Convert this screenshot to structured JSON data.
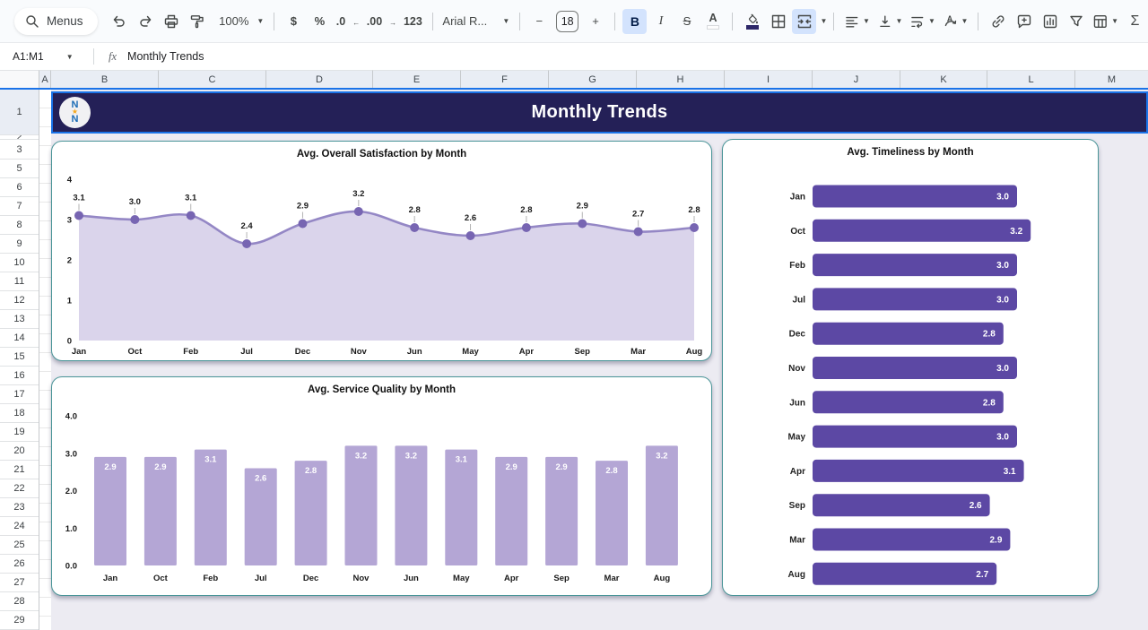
{
  "toolbar": {
    "menus_label": "Menus",
    "zoom_value": "100%",
    "currency_label": "$",
    "percent_label": "%",
    "decrease_decimal_label": ".0",
    "increase_decimal_label": ".00",
    "more_formats_label": "123",
    "font_name": "Arial R...",
    "minus_label": "−",
    "font_size": "18",
    "plus_label": "+",
    "bold_label": "B",
    "italic_label": "I",
    "strikethrough_label": "S",
    "text_color_label": "A",
    "rotation_letter": "A",
    "functions_label": "Σ"
  },
  "formula_bar": {
    "name_box": "A1:M1",
    "fx_label": "fx",
    "formula": "Monthly Trends"
  },
  "banner": {
    "title": "Monthly Trends",
    "logo_top": "N",
    "logo_mid": "★",
    "logo_bottom": "N"
  },
  "grid": {
    "columns": [
      "A",
      "B",
      "C",
      "D",
      "E",
      "F",
      "G",
      "H",
      "I",
      "J",
      "K",
      "L",
      "M"
    ],
    "rows": [
      "1",
      "2",
      "3",
      "5",
      "6",
      "7",
      "8",
      "9",
      "10",
      "11",
      "12",
      "13",
      "14",
      "15",
      "16",
      "17",
      "18",
      "19",
      "20",
      "21",
      "22",
      "23",
      "24",
      "25",
      "26",
      "27",
      "28",
      "29"
    ]
  },
  "colors": {
    "accent_blue": "#1a73e8",
    "banner_bg": "#242057",
    "card_border": "#4a9598",
    "sheet_bg": "#ecebf2",
    "area_fill": "#dad4eb",
    "area_line": "#9487c5",
    "area_dot": "#7765b2",
    "vbar": "#b4a6d5",
    "hbar": "#5c48a4",
    "label_dark": "#1a1a1a",
    "label_white": "#ffffff"
  },
  "chart_data": [
    {
      "type": "area",
      "title": "Avg. Overall Satisfaction by Month",
      "categories": [
        "Jan",
        "Oct",
        "Feb",
        "Jul",
        "Dec",
        "Nov",
        "Jun",
        "May",
        "Apr",
        "Sep",
        "Mar",
        "Aug"
      ],
      "values": [
        3.1,
        3.0,
        3.1,
        2.4,
        2.9,
        3.2,
        2.8,
        2.6,
        2.8,
        2.9,
        2.7,
        2.8
      ],
      "ylim": [
        0,
        4
      ],
      "yticks": [
        "4",
        "3",
        "2",
        "1",
        "0"
      ],
      "grid": false,
      "legend": "none"
    },
    {
      "type": "bar",
      "title": "Avg. Service Quality by Month",
      "categories": [
        "Jan",
        "Oct",
        "Feb",
        "Jul",
        "Dec",
        "Nov",
        "Jun",
        "May",
        "Apr",
        "Sep",
        "Mar",
        "Aug"
      ],
      "values": [
        2.9,
        2.9,
        3.1,
        2.6,
        2.8,
        3.2,
        3.2,
        3.1,
        2.9,
        2.9,
        2.8,
        3.2
      ],
      "ylim": [
        0,
        4
      ],
      "yticks": [
        "4.0",
        "3.0",
        "2.0",
        "1.0",
        "0.0"
      ],
      "grid": false,
      "legend": "none"
    },
    {
      "type": "hbar",
      "title": "Avg. Timeliness by Month",
      "categories": [
        "Jan",
        "Oct",
        "Feb",
        "Jul",
        "Dec",
        "Nov",
        "Jun",
        "May",
        "Apr",
        "Sep",
        "Mar",
        "Aug"
      ],
      "values": [
        3.0,
        3.2,
        3.0,
        3.0,
        2.8,
        3.0,
        2.8,
        3.0,
        3.1,
        2.6,
        2.9,
        2.7
      ],
      "xlim": [
        0,
        3.2
      ],
      "grid": false,
      "legend": "none"
    }
  ]
}
